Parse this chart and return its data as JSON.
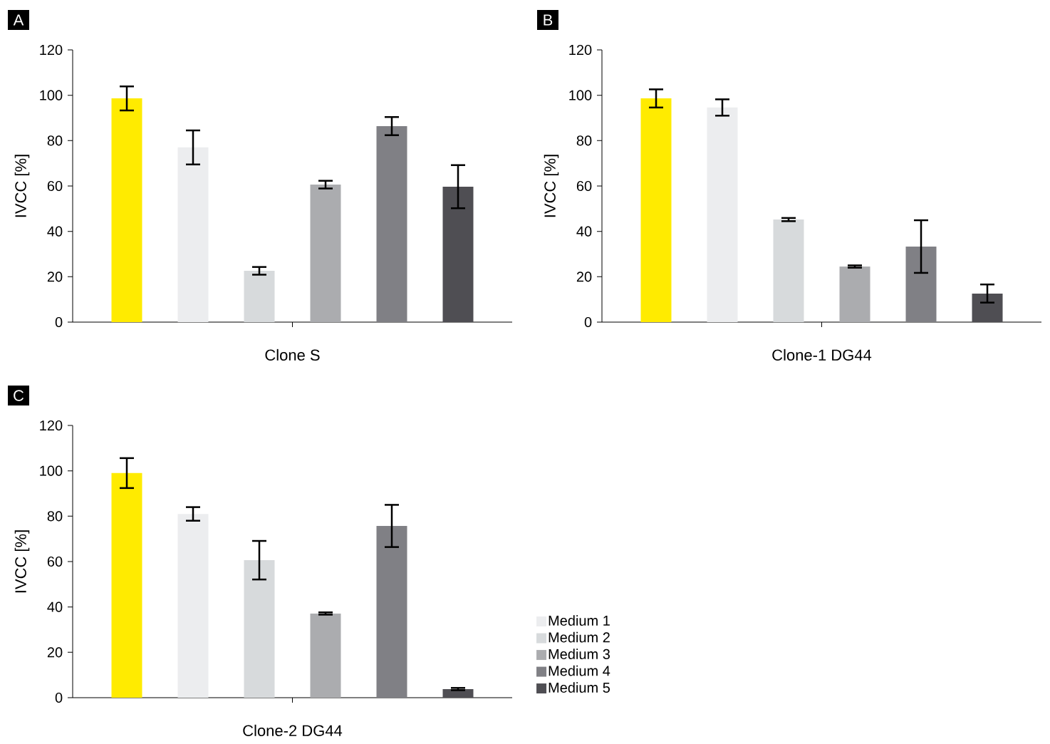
{
  "chart_data": [
    {
      "type": "bar",
      "categories": [
        "Clone S"
      ],
      "ylabel": "IVCC [%]",
      "ylim": [
        0,
        120
      ],
      "yticks": [
        0,
        20,
        40,
        60,
        80,
        100,
        120
      ],
      "annotations": [
        "A"
      ],
      "series": [
        {
          "color": "#ffeb00",
          "values": [
            98.6
          ],
          "errors": [
            5.3
          ]
        },
        {
          "color": "#ecedef",
          "values": [
            77
          ],
          "errors": [
            7.5
          ]
        },
        {
          "color": "#d7dadc",
          "values": [
            22.6
          ],
          "errors": [
            1.7
          ]
        },
        {
          "color": "#abacaf",
          "values": [
            60.6
          ],
          "errors": [
            1.7
          ]
        },
        {
          "color": "#808085",
          "values": [
            86.4
          ],
          "errors": [
            4
          ]
        },
        {
          "color": "#4f4e53",
          "values": [
            59.7
          ],
          "errors": [
            9.5
          ]
        }
      ]
    },
    {
      "type": "bar",
      "categories": [
        "Clone-1 DG44"
      ],
      "ylabel": "IVCC [%]",
      "ylim": [
        0,
        120
      ],
      "yticks": [
        0,
        20,
        40,
        60,
        80,
        100,
        120
      ],
      "annotations": [
        "B"
      ],
      "series": [
        {
          "color": "#ffeb00",
          "values": [
            98.6
          ],
          "errors": [
            4
          ]
        },
        {
          "color": "#ecedef",
          "values": [
            94.6
          ],
          "errors": [
            3.6
          ]
        },
        {
          "color": "#d7dadc",
          "values": [
            45.2
          ],
          "errors": [
            0.7
          ]
        },
        {
          "color": "#abacaf",
          "values": [
            24.5
          ],
          "errors": [
            0.5
          ]
        },
        {
          "color": "#808085",
          "values": [
            33.3
          ],
          "errors": [
            11.6
          ]
        },
        {
          "color": "#4f4e53",
          "values": [
            12.6
          ],
          "errors": [
            4
          ]
        }
      ]
    },
    {
      "type": "bar",
      "categories": [
        "Clone-2 DG44"
      ],
      "ylabel": "IVCC [%]",
      "ylim": [
        0,
        120
      ],
      "yticks": [
        0,
        20,
        40,
        60,
        80,
        100,
        120
      ],
      "annotations": [
        "C"
      ],
      "legend": "right",
      "series": [
        {
          "color": "#ffeb00",
          "values": [
            99
          ],
          "errors": [
            6.6
          ]
        },
        {
          "name": "Medium 1",
          "color": "#ecedef",
          "values": [
            81
          ],
          "errors": [
            3
          ]
        },
        {
          "name": "Medium 2",
          "color": "#d7dadc",
          "values": [
            60.6
          ],
          "errors": [
            8.5
          ]
        },
        {
          "name": "Medium 3",
          "color": "#abacaf",
          "values": [
            37.1
          ],
          "errors": [
            0.5
          ]
        },
        {
          "name": "Medium 4",
          "color": "#808085",
          "values": [
            75.7
          ],
          "errors": [
            9.3
          ]
        },
        {
          "name": "Medium 5",
          "color": "#4f4e53",
          "values": [
            3.8
          ],
          "errors": [
            0.5
          ]
        }
      ]
    }
  ]
}
